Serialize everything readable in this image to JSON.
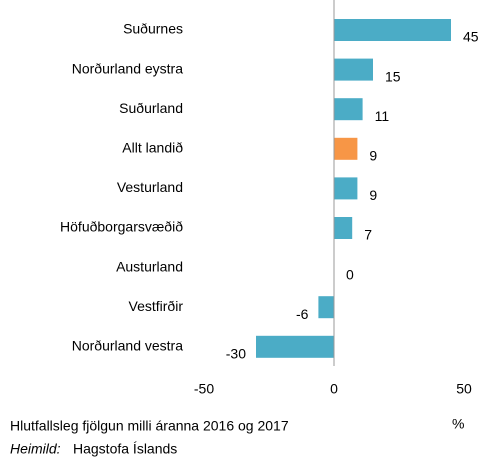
{
  "chart_data": {
    "type": "bar",
    "orientation": "horizontal",
    "categories": [
      "Suðurnes",
      "Norðurland eystra",
      "Suðurland",
      "Allt landið",
      "Vesturland",
      "Höfuðborgarsvæðið",
      "Austurland",
      "Vestfirðir",
      "Norðurland vestra"
    ],
    "values": [
      45,
      15,
      11,
      9,
      9,
      7,
      0,
      -6,
      -30
    ],
    "colors": [
      "#4bacc6",
      "#4bacc6",
      "#4bacc6",
      "#f79646",
      "#4bacc6",
      "#4bacc6",
      "#4bacc6",
      "#4bacc6",
      "#4bacc6"
    ],
    "xlim": [
      -50,
      50
    ],
    "xticks": [
      -50,
      0,
      50
    ],
    "xlabel": "Hlutfallsleg fjölgun milli áranna 2016 og 2017",
    "unit": "%",
    "source_label": "Heimild:",
    "source": "Hagstofa Íslands"
  }
}
